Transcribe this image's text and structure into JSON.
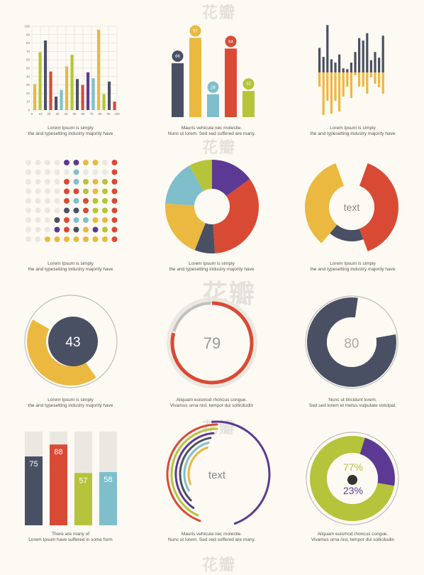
{
  "colors": {
    "navy": "#4a5064",
    "yellow": "#ebb840",
    "teal": "#7fbfcc",
    "red": "#d94a35",
    "green": "#b5c43a",
    "purple": "#5c3a93",
    "grey": "#dcdcdc",
    "light": "#ebe8e2"
  },
  "captions": {
    "c1": [
      "Lorem Ipsum is simply",
      "the  and typesetting industry majority have"
    ],
    "c2": [
      "Mauris vehicula nec molestie.",
      "Nunc ut  lorem. Sed sed  suffered  are many."
    ],
    "c3": [
      "Lorem Ipsum is simply",
      "the  and typesetting industry majority have"
    ],
    "c4": [
      "Lorem Ipsum is simply",
      "the  and typesetting industry majority have"
    ],
    "c5": [
      "Lorem Ipsum is simply",
      "the  and typesetting industry majority have"
    ],
    "c6": [
      "Lorem Ipsum is simply",
      "the  and typesetting industry majority have"
    ],
    "c7": [
      "Lorem Ipsum is simply",
      "the  and typesetting industry majority have"
    ],
    "c8": [
      "Aliquam euismod rhoncus congue.",
      "Vivamus urna nisl,  tempor dui sollicitudin"
    ],
    "c9": [
      "Nunc ut tincidunt lorem.",
      "Sed sed lorem et metus vulputate volutpat."
    ],
    "c10": [
      "There are many  of",
      "Lorem Ipsum  have suffered  in some form"
    ],
    "c11": [
      "Mauris vehicula nec molestie.",
      "Nunc ut  lorem. Sed sed  suffered  are many."
    ],
    "c12": [
      "Aliquam euismod rhoncus congue.",
      "Vivamus urna nisl,  tempor dui sollicitudin"
    ]
  },
  "watermark": "花瓣",
  "chart_data": [
    {
      "type": "bar",
      "id": "grouped-bar",
      "xticks": [
        "0",
        "10",
        "20",
        "30",
        "40",
        "50",
        "60",
        "70",
        "80",
        "90",
        "100"
      ],
      "yticks": [
        "0",
        "10",
        "20",
        "30",
        "40",
        "50",
        "60",
        "70",
        "80",
        "90",
        "100"
      ],
      "ylim": [
        0,
        100
      ],
      "values": [
        31,
        69,
        83,
        46,
        16,
        24,
        52,
        66,
        37,
        30,
        45,
        38,
        96,
        19,
        34,
        10
      ],
      "colors": [
        "yellow",
        "green",
        "navy",
        "red",
        "navy",
        "teal",
        "yellow",
        "green",
        "navy",
        "red",
        "purple",
        "teal",
        "yellow",
        "green",
        "navy",
        "red"
      ]
    },
    {
      "type": "bar",
      "id": "labeled-bar",
      "values": [
        66,
        97,
        28,
        84,
        32
      ],
      "labels": [
        "66",
        "97",
        "28",
        "84",
        "32"
      ],
      "colors": [
        "navy",
        "yellow",
        "teal",
        "red",
        "green"
      ]
    },
    {
      "type": "bar",
      "id": "diverging-bar",
      "up": [
        30,
        19,
        58,
        16,
        12,
        22,
        5,
        4,
        12,
        25,
        42,
        39,
        48,
        15,
        25,
        18,
        45
      ],
      "down": [
        20,
        60,
        40,
        58,
        40,
        55,
        34,
        20,
        36,
        4,
        20,
        20,
        30,
        7,
        16,
        21,
        30
      ]
    },
    {
      "type": "scatter",
      "id": "dot-matrix",
      "columns": [
        [
          "light",
          "light",
          "light",
          "light",
          "light",
          "light",
          "light",
          "light",
          "light"
        ],
        [
          "light",
          "light",
          "light",
          "light",
          "light",
          "light",
          "light",
          "light",
          "light"
        ],
        [
          "light",
          "light",
          "light",
          "light",
          "light",
          "light",
          "light",
          "light",
          "yellow"
        ],
        [
          "light",
          "light",
          "light",
          "light",
          "light",
          "light",
          "navy",
          "purple",
          "yellow"
        ],
        [
          "purple",
          "light",
          "red",
          "red",
          "red",
          "navy",
          "red",
          "red",
          "yellow"
        ],
        [
          "purple",
          "teal",
          "teal",
          "red",
          "teal",
          "navy",
          "teal",
          "navy",
          "yellow"
        ],
        [
          "yellow",
          "light",
          "green",
          "green",
          "red",
          "red",
          "teal",
          "yellow",
          "yellow"
        ],
        [
          "yellow",
          "light",
          "yellow",
          "yellow",
          "green",
          "green",
          "yellow",
          "purple",
          "yellow"
        ],
        [
          "light",
          "light",
          "green",
          "green",
          "green",
          "green",
          "yellow",
          "green",
          "yellow"
        ],
        [
          "red",
          "red",
          "red",
          "red",
          "red",
          "red",
          "red",
          "red",
          "red"
        ]
      ]
    },
    {
      "type": "pie",
      "id": "donut-1",
      "slices": [
        {
          "value": 15,
          "color": "purple"
        },
        {
          "value": 34,
          "color": "red"
        },
        {
          "value": 7,
          "color": "navy"
        },
        {
          "value": 20,
          "color": "yellow"
        },
        {
          "value": 16,
          "color": "teal"
        },
        {
          "value": 8,
          "color": "green"
        }
      ]
    },
    {
      "type": "pie",
      "id": "donut-2",
      "center_label": "text",
      "slices": [
        {
          "value": 36,
          "color": "red"
        },
        {
          "value": 12,
          "color": "navy"
        },
        {
          "value": 30,
          "color": "yellow"
        }
      ]
    },
    {
      "type": "pie",
      "id": "ring-43",
      "value": 43,
      "label": "43"
    },
    {
      "type": "pie",
      "id": "ring-79",
      "value": 79,
      "label": "79"
    },
    {
      "type": "pie",
      "id": "ring-80",
      "value": 80,
      "label": "80"
    },
    {
      "type": "bar",
      "id": "fill-bars",
      "values": [
        75,
        88,
        57,
        58
      ],
      "labels": [
        "75",
        "88",
        "57",
        "58"
      ],
      "colors": [
        "navy",
        "red",
        "green",
        "teal"
      ]
    },
    {
      "type": "line",
      "id": "arcs",
      "center_label": "text",
      "arcs": [
        {
          "color": "red",
          "value": 40
        },
        {
          "color": "green",
          "value": 48
        },
        {
          "color": "purple",
          "value": 56
        },
        {
          "color": "navy",
          "value": 60
        },
        {
          "color": "teal",
          "value": 66
        },
        {
          "color": "yellow",
          "value": 72
        },
        {
          "color": "purple",
          "value": 62
        }
      ]
    },
    {
      "type": "pie",
      "id": "ring-77-23",
      "labels": [
        "77%",
        "23%"
      ],
      "slices": [
        {
          "value": 77,
          "color": "green"
        },
        {
          "value": 23,
          "color": "purple"
        }
      ]
    }
  ]
}
